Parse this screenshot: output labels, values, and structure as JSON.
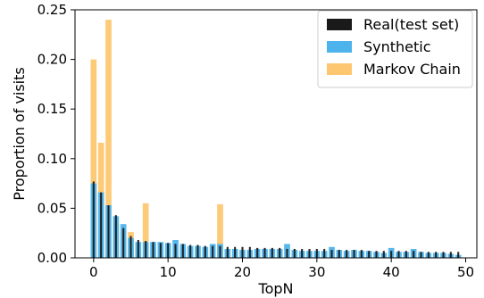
{
  "chart_data": {
    "type": "bar",
    "xlabel": "TopN",
    "ylabel": "Proportion of visits",
    "xlim": [
      -2.5,
      51.5
    ],
    "ylim": [
      0,
      0.25
    ],
    "xticks": [
      0,
      10,
      20,
      30,
      40,
      50
    ],
    "yticks": [
      0.0,
      0.05,
      0.1,
      0.15,
      0.2,
      0.25
    ],
    "xtick_labels": [
      "0",
      "10",
      "20",
      "30",
      "40",
      "50"
    ],
    "ytick_labels": [
      "0.00",
      "0.05",
      "0.10",
      "0.15",
      "0.20",
      "0.25"
    ],
    "grid": false,
    "legend_position": "top-right",
    "x": [
      0,
      1,
      2,
      3,
      4,
      5,
      6,
      7,
      8,
      9,
      10,
      11,
      12,
      13,
      14,
      15,
      16,
      17,
      18,
      19,
      20,
      21,
      22,
      23,
      24,
      25,
      26,
      27,
      28,
      29,
      30,
      31,
      32,
      33,
      34,
      35,
      36,
      37,
      38,
      39,
      40,
      41,
      42,
      43,
      44,
      45,
      46,
      47,
      48,
      49
    ],
    "series": [
      {
        "name": "Markov Chain",
        "color": "#fdc771",
        "values": [
          0.2,
          0.116,
          0.24,
          0.035,
          0.028,
          0.026,
          0.003,
          0.055,
          0.003,
          0.002,
          0.002,
          0.002,
          0.002,
          0.002,
          0.001,
          0.001,
          0.001,
          0.054,
          0.001,
          0.001,
          0.001,
          0.001,
          0.001,
          0.001,
          0.001,
          0.001,
          0.001,
          0.001,
          0.001,
          0.001,
          0.001,
          0.001,
          0.001,
          0.001,
          0.001,
          0.001,
          0.001,
          0.001,
          0.001,
          0.001,
          0.001,
          0.001,
          0.001,
          0.001,
          0.001,
          0.001,
          0.001,
          0.001,
          0.001,
          0.001
        ]
      },
      {
        "name": "Synthetic",
        "color": "#4db3ec",
        "values": [
          0.075,
          0.066,
          0.053,
          0.042,
          0.034,
          0.02,
          0.016,
          0.016,
          0.016,
          0.016,
          0.015,
          0.018,
          0.014,
          0.012,
          0.012,
          0.011,
          0.014,
          0.014,
          0.009,
          0.009,
          0.008,
          0.008,
          0.009,
          0.009,
          0.009,
          0.009,
          0.014,
          0.008,
          0.007,
          0.007,
          0.007,
          0.007,
          0.011,
          0.008,
          0.007,
          0.008,
          0.007,
          0.007,
          0.006,
          0.005,
          0.01,
          0.006,
          0.006,
          0.009,
          0.006,
          0.005,
          0.005,
          0.005,
          0.004,
          0.003
        ]
      },
      {
        "name": "Real(test set)",
        "color": "#1a1a1a",
        "values": [
          0.077,
          0.066,
          0.053,
          0.043,
          0.03,
          0.022,
          0.018,
          0.017,
          0.016,
          0.015,
          0.015,
          0.014,
          0.014,
          0.013,
          0.013,
          0.012,
          0.012,
          0.012,
          0.011,
          0.011,
          0.011,
          0.011,
          0.01,
          0.01,
          0.01,
          0.01,
          0.009,
          0.009,
          0.009,
          0.009,
          0.009,
          0.009,
          0.008,
          0.008,
          0.008,
          0.008,
          0.008,
          0.007,
          0.007,
          0.007,
          0.007,
          0.007,
          0.007,
          0.007,
          0.006,
          0.006,
          0.006,
          0.006,
          0.006,
          0.006
        ]
      }
    ],
    "legend_order": [
      "Real(test set)",
      "Synthetic",
      "Markov Chain"
    ]
  }
}
